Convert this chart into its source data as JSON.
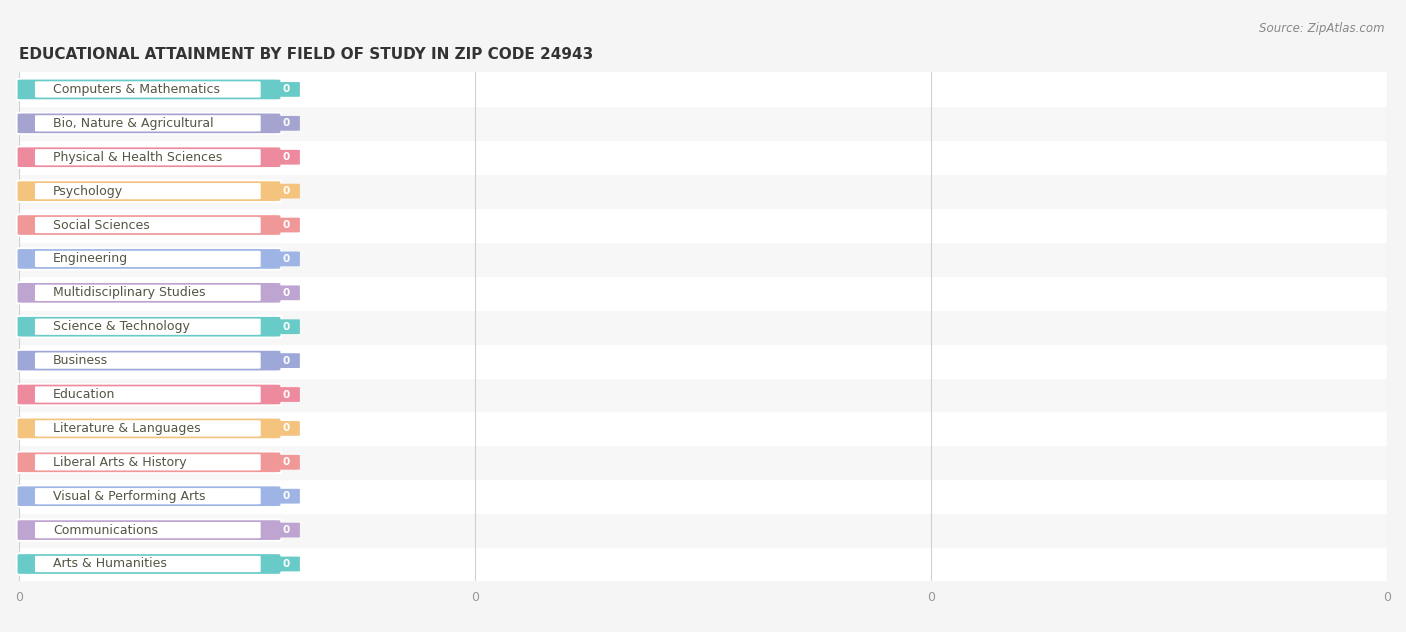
{
  "title": "EDUCATIONAL ATTAINMENT BY FIELD OF STUDY IN ZIP CODE 24943",
  "source": "Source: ZipAtlas.com",
  "categories": [
    "Computers & Mathematics",
    "Bio, Nature & Agricultural",
    "Physical & Health Sciences",
    "Psychology",
    "Social Sciences",
    "Engineering",
    "Multidisciplinary Studies",
    "Science & Technology",
    "Business",
    "Education",
    "Literature & Languages",
    "Liberal Arts & History",
    "Visual & Performing Arts",
    "Communications",
    "Arts & Humanities"
  ],
  "values": [
    0,
    0,
    0,
    0,
    0,
    0,
    0,
    0,
    0,
    0,
    0,
    0,
    0,
    0,
    0
  ],
  "bar_colors": [
    "#68cbc7",
    "#a5a4d0",
    "#ee8a9d",
    "#f4c47e",
    "#f09898",
    "#9db4e4",
    "#bea4d0",
    "#68cbc7",
    "#9da8d8",
    "#ee8a9d",
    "#f4c47e",
    "#f09898",
    "#9db4e4",
    "#bea4d0",
    "#68cbc7"
  ],
  "bar_bg_colors": [
    "#ccecea",
    "#d4d3ec",
    "#f8ccd4",
    "#fce4bc",
    "#f8cccc",
    "#ccd8f0",
    "#ddd0ec",
    "#ccecea",
    "#ccd0ec",
    "#f8ccd4",
    "#fce4bc",
    "#f8ccd4",
    "#ccd8f0",
    "#ddd0ec",
    "#ccecea"
  ],
  "row_odd_color": "#f7f7f7",
  "row_even_color": "#ffffff",
  "figure_bg": "#f5f5f5",
  "title_fontsize": 11,
  "label_fontsize": 9,
  "source_fontsize": 8.5,
  "grid_color": "#d0d0d0",
  "text_color": "#555544"
}
